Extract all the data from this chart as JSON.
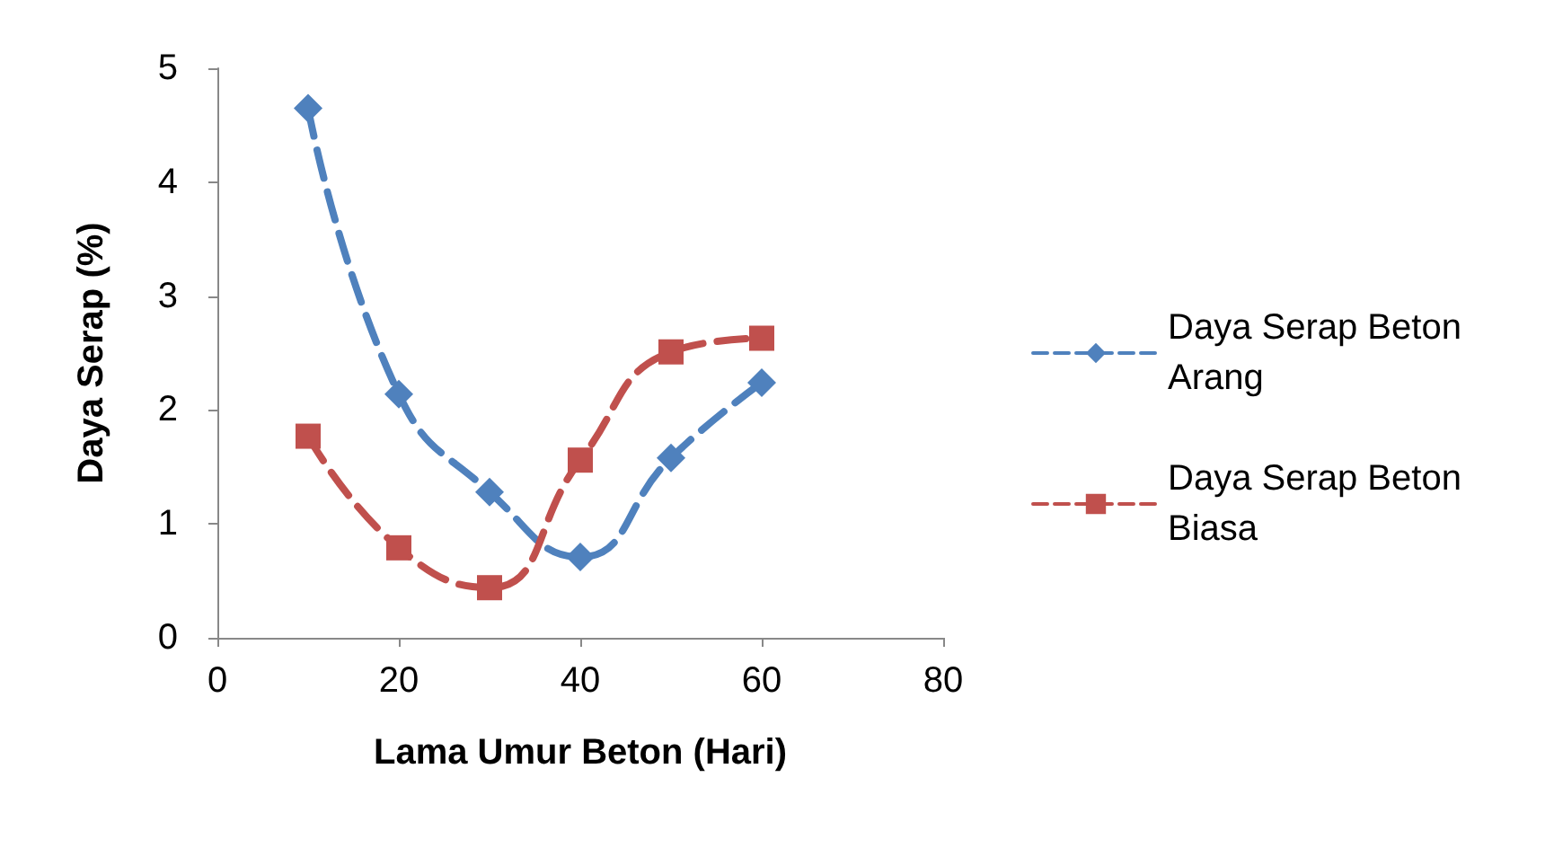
{
  "chart_data": {
    "type": "line",
    "xlabel": "Lama Umur Beton (Hari)",
    "ylabel": "Daya Serap (%)",
    "xlim": [
      0,
      80
    ],
    "xticks": [
      0,
      20,
      40,
      60,
      80
    ],
    "ylim": [
      0,
      5
    ],
    "yticks": [
      0,
      1,
      2,
      3,
      4,
      5
    ],
    "grid": false,
    "legend": "right",
    "line_style": "dashed",
    "series": [
      {
        "name": "Daya Serap Beton Arang",
        "color": "#4f81bd",
        "marker": "diamond",
        "x": [
          10,
          20,
          30,
          40,
          50,
          60
        ],
        "values": [
          4.65,
          2.14,
          1.28,
          0.71,
          1.58,
          2.24
        ]
      },
      {
        "name": "Daya Serap Beton Biasa",
        "color": "#c0504d",
        "marker": "square",
        "x": [
          10,
          20,
          30,
          40,
          50,
          60
        ],
        "values": [
          1.77,
          0.79,
          0.44,
          1.56,
          2.51,
          2.63
        ]
      }
    ]
  }
}
